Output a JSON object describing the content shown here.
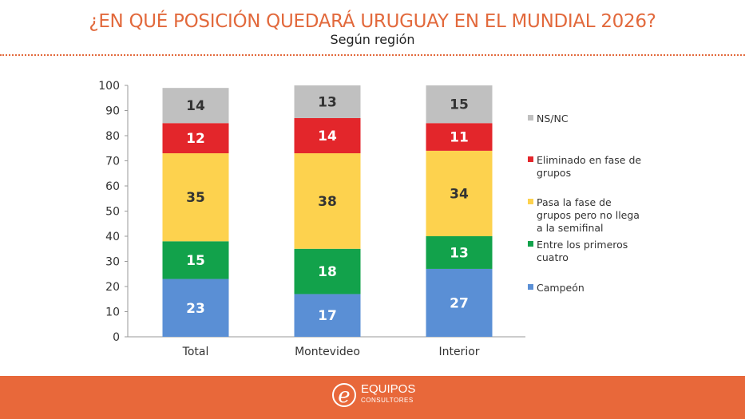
{
  "header": {
    "title": "¿EN QUÉ POSICIÓN QUEDARÁ URUGUAY EN EL MUNDIAL 2026?",
    "subtitle": "Según región"
  },
  "footer": {
    "logo_name": "EQUIPOS",
    "logo_sub": "CONSULTORES"
  },
  "chart_data": {
    "type": "bar",
    "stacked": true,
    "title": "¿EN QUÉ POSICIÓN QUEDARÁ URUGUAY EN EL MUNDIAL 2026?",
    "subtitle": "Según región",
    "categories": [
      "Total",
      "Montevideo",
      "Interior"
    ],
    "ylim": [
      0,
      100
    ],
    "yticks": [
      0,
      10,
      20,
      30,
      40,
      50,
      60,
      70,
      80,
      90,
      100
    ],
    "legend_position": "right",
    "series": [
      {
        "name": "Campeón",
        "color": "#5a8fd5",
        "label_color": "#ffffff",
        "values": [
          23,
          17,
          27
        ]
      },
      {
        "name": "Entre los primeros cuatro",
        "color": "#12a24b",
        "label_color": "#ffffff",
        "values": [
          15,
          18,
          13
        ]
      },
      {
        "name": "Pasa la fase de grupos pero no llega a la semifinal",
        "color": "#fdd24e",
        "label_color": "#333333",
        "values": [
          35,
          38,
          34
        ]
      },
      {
        "name": "Eliminado en fase de grupos",
        "color": "#e3262b",
        "label_color": "#ffffff",
        "values": [
          12,
          14,
          11
        ]
      },
      {
        "name": "NS/NC",
        "color": "#c0c0c0",
        "label_color": "#333333",
        "values": [
          14,
          13,
          15
        ]
      }
    ],
    "legend_lines": [
      [
        "NS/NC"
      ],
      [
        "Eliminado en fase de",
        "grupos"
      ],
      [
        "Pasa la fase de",
        "grupos pero no llega",
        "a la semifinal"
      ],
      [
        "Entre los primeros",
        "cuatro"
      ],
      [
        "Campeón"
      ]
    ]
  }
}
